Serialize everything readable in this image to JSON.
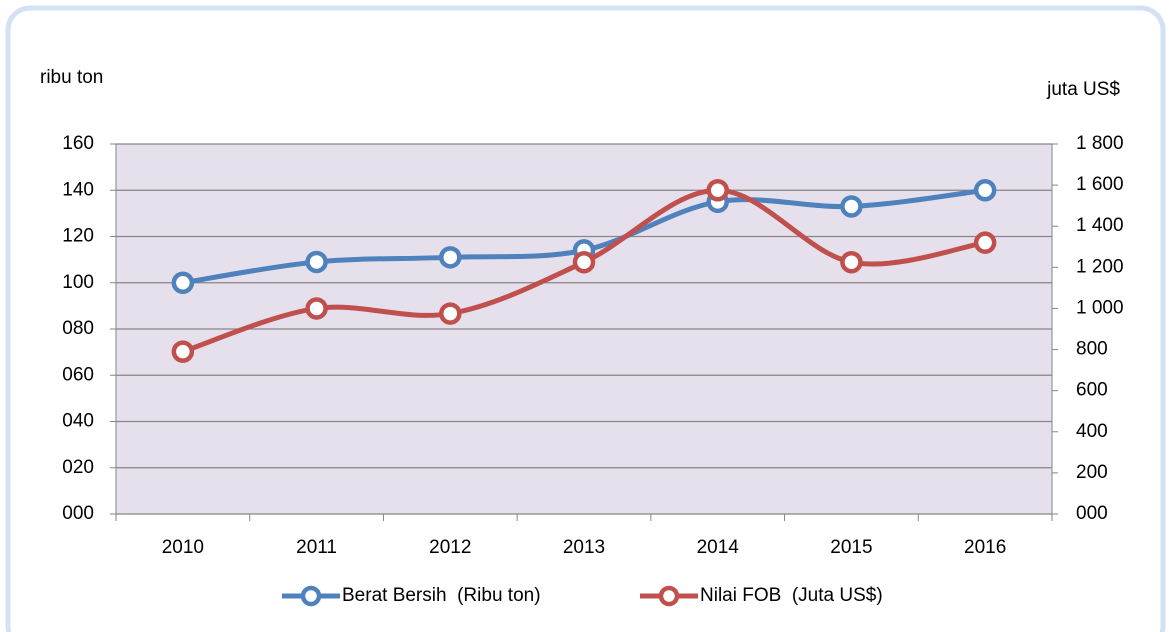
{
  "chart_data": {
    "type": "line",
    "y_label": "ribu ton",
    "y2_label": "juta US$",
    "categories": [
      "2010",
      "2011",
      "2012",
      "2013",
      "2014",
      "2015",
      "2016"
    ],
    "series": [
      {
        "name": "Berat Bersih  (Ribu ton)",
        "color": "#4f81bd",
        "values": [
          100,
          109,
          111,
          114,
          135,
          133,
          140
        ]
      },
      {
        "name": "Nilai FOB  (Juta US$)",
        "color": "#c0504d",
        "axis": "y2",
        "values": [
          790,
          1000,
          975,
          1225,
          1575,
          1225,
          1320
        ]
      }
    ],
    "ylim": [
      0,
      160
    ],
    "yticks": [
      {
        "value": 0,
        "label": "000"
      },
      {
        "value": 20,
        "label": "020"
      },
      {
        "value": 40,
        "label": "040"
      },
      {
        "value": 60,
        "label": "060"
      },
      {
        "value": 80,
        "label": "080"
      },
      100,
      120,
      140,
      160
    ],
    "y2lim": [
      0,
      1800
    ],
    "y2ticks": [
      {
        "value": 0,
        "label": "000"
      },
      200,
      400,
      600,
      800,
      {
        "value": 1000,
        "label": "1 000"
      },
      {
        "value": 1200,
        "label": "1 200"
      },
      {
        "value": 1400,
        "label": "1 400"
      },
      {
        "value": 1600,
        "label": "1 600"
      },
      {
        "value": 1800,
        "label": "1 800"
      }
    ],
    "grid": true,
    "legend": "bottom",
    "smooth": true,
    "plot_background": "#e6e0ec"
  }
}
